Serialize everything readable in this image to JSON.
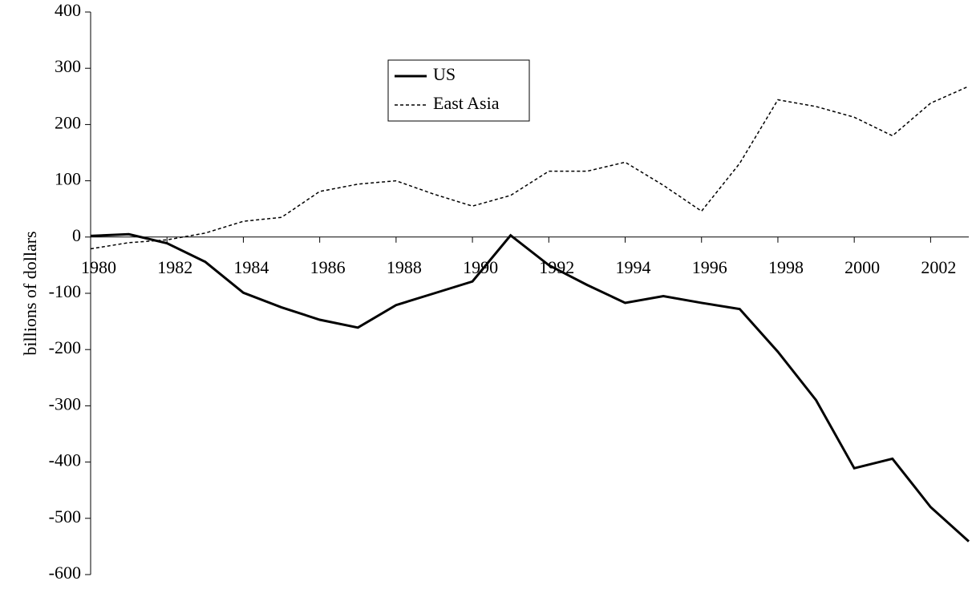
{
  "chart_data": {
    "type": "line",
    "ylabel": "billions of dollars",
    "x": [
      1980,
      1981,
      1982,
      1983,
      1984,
      1985,
      1986,
      1987,
      1988,
      1989,
      1990,
      1991,
      1992,
      1993,
      1994,
      1995,
      1996,
      1997,
      1998,
      1999,
      2000,
      2001,
      2002,
      2003
    ],
    "series": [
      {
        "name": "US",
        "color": "#000000",
        "dash": "solid",
        "values": [
          2,
          5,
          -11,
          -44,
          -99,
          -125,
          -147,
          -161,
          -121,
          -100,
          -79,
          3,
          -50,
          -85,
          -117,
          -105,
          -117,
          -128,
          -204,
          -290,
          -411,
          -394,
          -480,
          -541
        ]
      },
      {
        "name": "East Asia",
        "color": "#000000",
        "dash": "dotted",
        "values": [
          -21,
          -10,
          -5,
          7,
          28,
          35,
          81,
          94,
          100,
          76,
          55,
          74,
          117,
          117,
          133,
          92,
          46,
          131,
          244,
          232,
          213,
          180,
          238,
          268
        ]
      }
    ],
    "xlim": [
      1980,
      2003
    ],
    "xticks": [
      1980,
      1982,
      1984,
      1986,
      1988,
      1990,
      1992,
      1994,
      1996,
      1998,
      2000,
      2002
    ],
    "ylim": [
      -600,
      400
    ],
    "yticks": [
      -600,
      -500,
      -400,
      -300,
      -200,
      -100,
      0,
      100,
      200,
      300,
      400
    ],
    "grid": false,
    "legend": "upper center"
  }
}
